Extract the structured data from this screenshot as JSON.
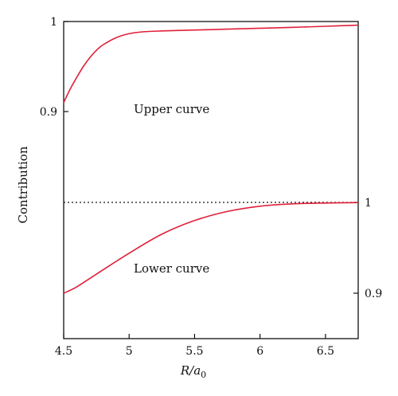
{
  "chart_data": {
    "type": "line",
    "xlabel_main": "R/a",
    "xlabel_sub": "0",
    "ylabel": "Contribution",
    "xlim": [
      4.5,
      6.75
    ],
    "x_ticks": [
      "4.5",
      "5",
      "5.5",
      "6",
      "6.5"
    ],
    "panels": [
      {
        "name": "upper",
        "ylim": [
          0.9,
          1.0
        ],
        "y_ticks": [
          {
            "value": 1.0,
            "label": "1"
          },
          {
            "value": 0.9,
            "label": "0.9"
          }
        ],
        "tick_side": "left",
        "annotation": "Upper curve",
        "series": [
          {
            "color": "#e0203a",
            "x": [
              4.5,
              4.55,
              4.6,
              4.65,
              4.7,
              4.75,
              4.8,
              4.9,
              5.0,
              5.1,
              5.25,
              5.5,
              5.75,
              6.0,
              6.25,
              6.5,
              6.75
            ],
            "y": [
              0.91,
              0.925,
              0.938,
              0.95,
              0.96,
              0.968,
              0.974,
              0.982,
              0.9865,
              0.9885,
              0.9895,
              0.9905,
              0.9915,
              0.9925,
              0.9935,
              0.9947,
              0.996
            ]
          }
        ]
      },
      {
        "name": "lower",
        "ylim": [
          0.87,
          1.0
        ],
        "y_ticks": [
          {
            "value": 1.0,
            "label": "1"
          },
          {
            "value": 0.9,
            "label": "0.9"
          }
        ],
        "tick_side": "right",
        "annotation": "Lower curve",
        "series": [
          {
            "color": "#e0203a",
            "x": [
              4.5,
              4.6,
              4.75,
              5.0,
              5.25,
              5.5,
              5.75,
              6.0,
              6.25,
              6.5,
              6.75
            ],
            "y": [
              0.9,
              0.907,
              0.921,
              0.944,
              0.965,
              0.98,
              0.99,
              0.9958,
              0.9984,
              0.9993,
              0.9997
            ]
          }
        ]
      }
    ],
    "divider": "dotted",
    "grid": false
  }
}
